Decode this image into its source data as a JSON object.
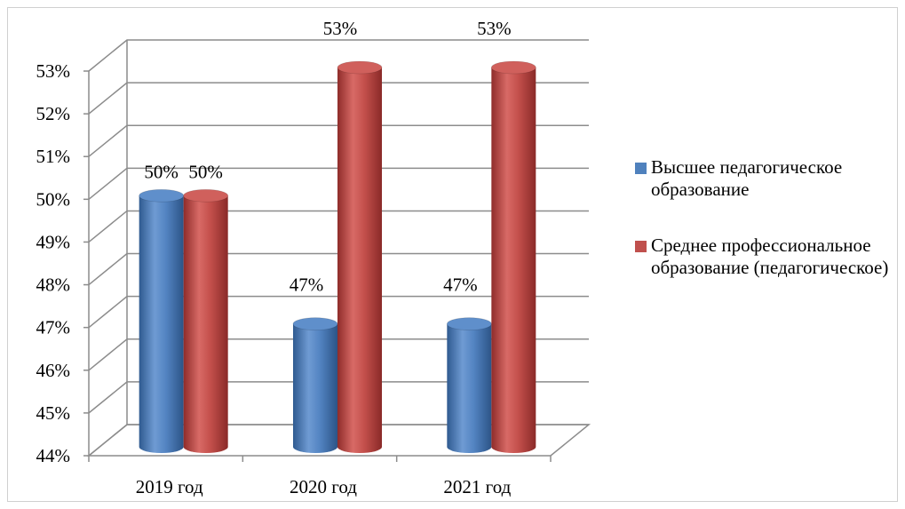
{
  "chart_data": {
    "type": "bar",
    "style": "3d-cylinder",
    "categories": [
      "2019 год",
      "2020 год",
      "2021 год"
    ],
    "series": [
      {
        "name": "Высшее педагогическое образование",
        "color": "#4F81BD",
        "values": [
          50,
          47,
          47
        ],
        "labels": [
          "50%",
          "47%",
          "47%"
        ]
      },
      {
        "name": "Среднее профессиональное образование (педагогическое)",
        "color": "#C0504D",
        "values": [
          50,
          53,
          53
        ],
        "labels": [
          "50%",
          "53%",
          "53%"
        ]
      }
    ],
    "ylim": [
      44,
      53
    ],
    "yticks": [
      "44%",
      "45%",
      "46%",
      "47%",
      "48%",
      "49%",
      "50%",
      "51%",
      "52%",
      "53%"
    ],
    "grid": true,
    "legend": "right",
    "title": "",
    "xlabel": "",
    "ylabel": ""
  }
}
